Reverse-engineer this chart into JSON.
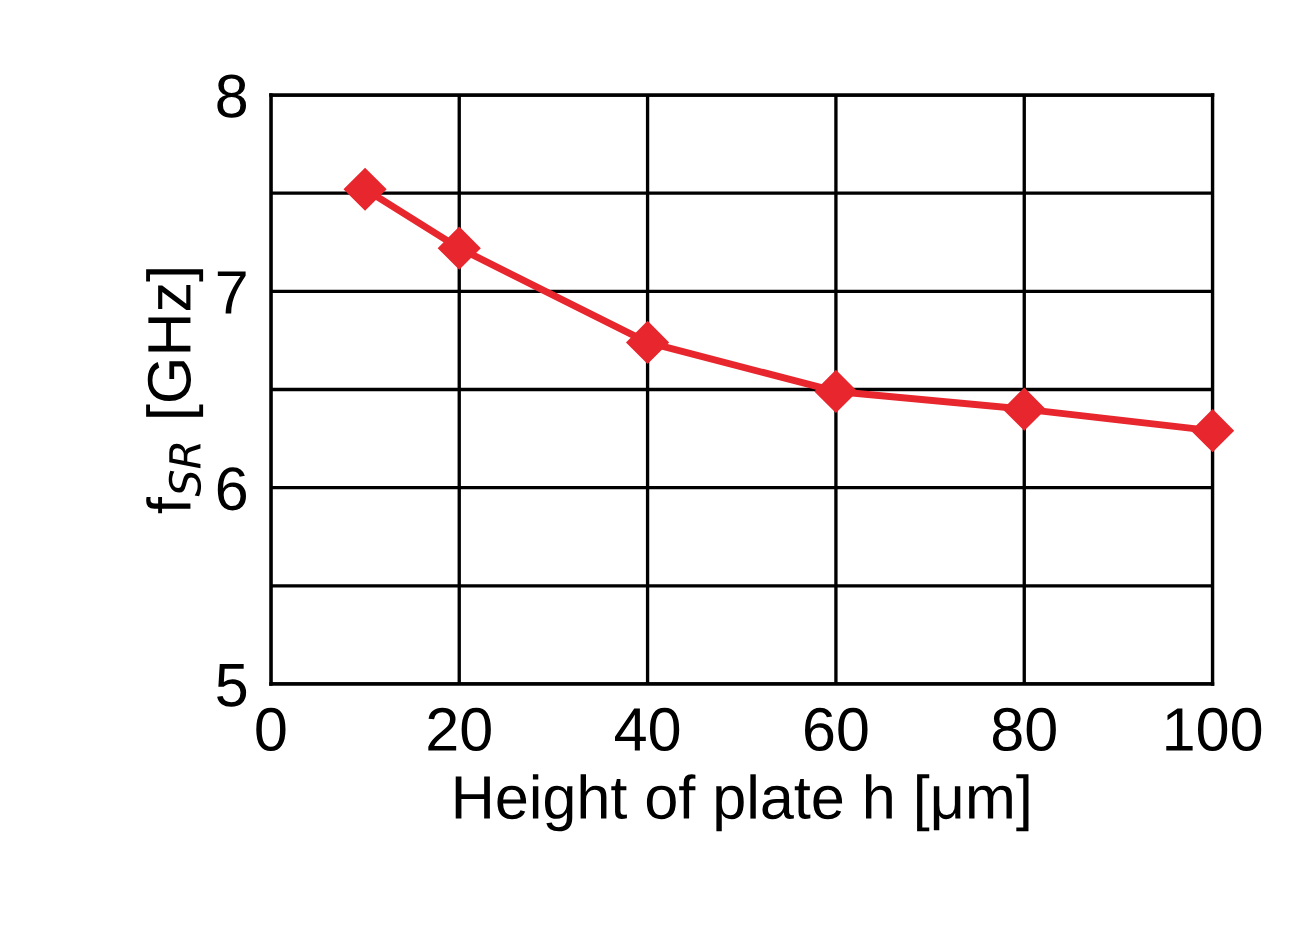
{
  "chart_data": {
    "type": "line",
    "xlabel": "Height of plate h [μm]",
    "ylabel": "f$_{SR}$ [GHz]",
    "x": [
      10,
      20,
      40,
      60,
      80,
      100
    ],
    "series": [
      {
        "color": "#e8262d",
        "values": [
          7.52,
          7.22,
          6.74,
          6.49,
          6.4,
          6.29
        ]
      }
    ],
    "xlim": [
      0,
      100
    ],
    "xticks": [
      0,
      20,
      40,
      60,
      80,
      100
    ],
    "ylim": [
      5,
      8
    ],
    "yticks": [
      5,
      {
        "value": 5.5,
        "label": null
      },
      6,
      {
        "value": 6.5,
        "label": null
      },
      7,
      {
        "value": 7.5,
        "label": null
      },
      8
    ],
    "grid": true,
    "marker": "diamond",
    "line_style": "solid"
  }
}
